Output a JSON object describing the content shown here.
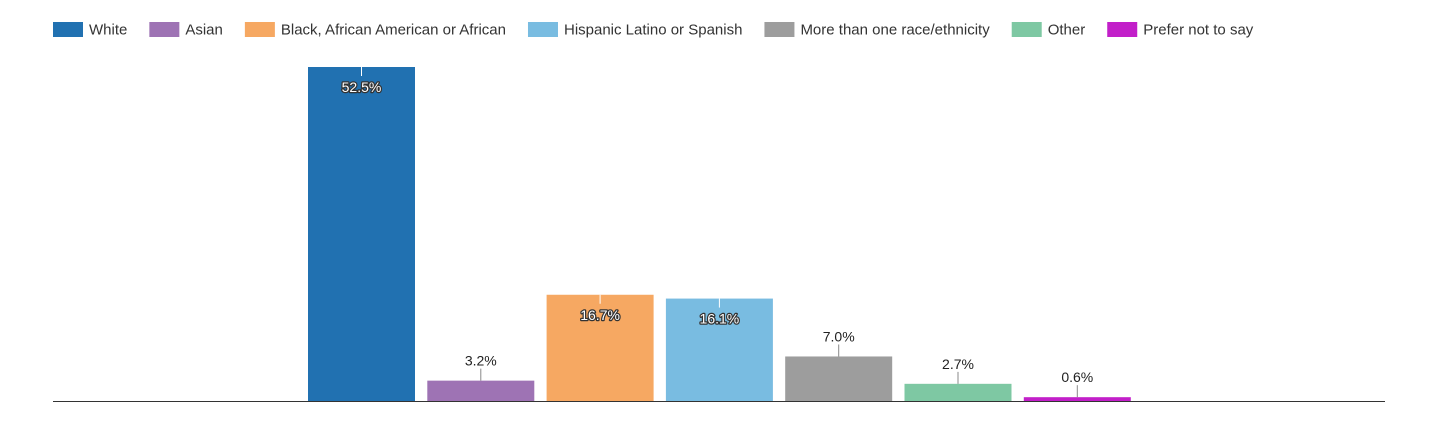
{
  "chart_data": {
    "type": "bar",
    "title": "",
    "xlabel": "",
    "ylabel": "",
    "ylim": [
      0,
      52.5
    ],
    "grid": false,
    "legend_position": "top-left",
    "value_format": "percent",
    "categories": [
      "White",
      "Asian",
      "Black, African American or African",
      "Hispanic Latino or Spanish",
      "More than one race/ethnicity",
      "Other",
      "Prefer not to say"
    ],
    "values": [
      52.5,
      3.2,
      16.7,
      16.1,
      7.0,
      2.7,
      0.6
    ],
    "labels": [
      "52.5%",
      "3.2%",
      "16.7%",
      "16.1%",
      "7.0%",
      "2.7%",
      "0.6%"
    ],
    "colors": [
      "#2171b1",
      "#9e73b4",
      "#f6a862",
      "#79bce1",
      "#9d9d9d",
      "#7ec8a3",
      "#c21fc9"
    ]
  }
}
